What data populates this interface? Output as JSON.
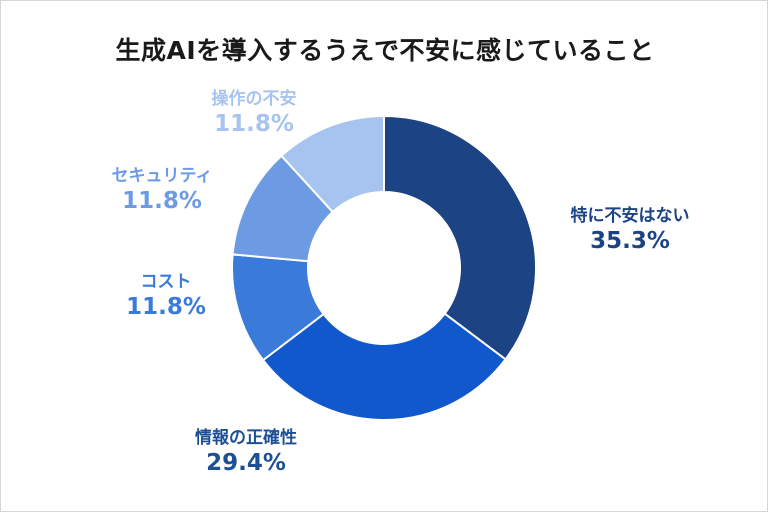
{
  "chart_data": {
    "type": "pie",
    "style": "donut",
    "title": "生成AIを導入するうえで不安に感じていること",
    "slices": [
      {
        "label": "特に不安はない",
        "value": 35.3,
        "display": "35.3%",
        "color": "#1c4384"
      },
      {
        "label": "情報の正確性",
        "value": 29.4,
        "display": "29.4%",
        "color": "#1158cc"
      },
      {
        "label": "コスト",
        "value": 11.8,
        "display": "11.8%",
        "color": "#3a7ad8"
      },
      {
        "label": "セキュリティ",
        "value": 11.8,
        "display": "11.8%",
        "color": "#6c9be4"
      },
      {
        "label": "操作の不安",
        "value": 11.8,
        "display": "11.8%",
        "color": "#a7c3ef"
      }
    ],
    "label_colors": [
      "#1c4384",
      "#1c4f96",
      "#3a7ad8",
      "#6c9be4",
      "#a7c3ef"
    ],
    "legend": "none",
    "start": "top",
    "direction": "clockwise"
  }
}
